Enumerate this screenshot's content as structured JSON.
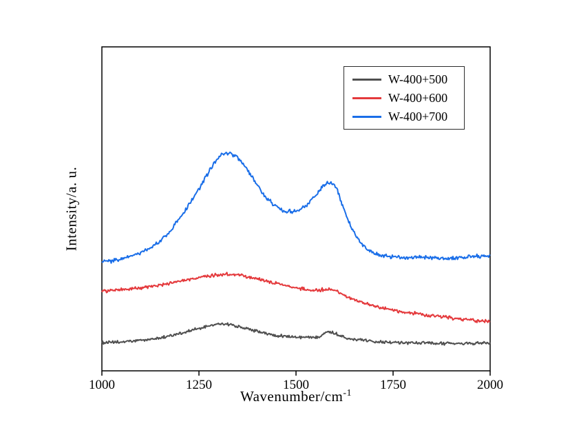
{
  "figure": {
    "background": "#ffffff",
    "frame_color": "#000000"
  },
  "chart_data": {
    "type": "line",
    "title": "",
    "xlabel": "Wavenumber/cm⁻¹",
    "xlabel_base": "Wavenumber/cm",
    "xlabel_sup": "-1",
    "ylabel": "Intensity/a. u.",
    "xlim": [
      1000,
      2000
    ],
    "ylim": [
      0,
      1
    ],
    "xticks": [
      1000,
      1250,
      1500,
      1750,
      2000
    ],
    "yticks": [],
    "grid": false,
    "legend_position": "top-right-inside",
    "series": [
      {
        "name": "W-400+500",
        "color": "#4f4f4f",
        "noise": 0.0035,
        "points": [
          [
            1000,
            0.087
          ],
          [
            1050,
            0.089
          ],
          [
            1100,
            0.094
          ],
          [
            1150,
            0.102
          ],
          [
            1200,
            0.115
          ],
          [
            1250,
            0.13
          ],
          [
            1290,
            0.142
          ],
          [
            1310,
            0.145
          ],
          [
            1340,
            0.14
          ],
          [
            1380,
            0.128
          ],
          [
            1430,
            0.113
          ],
          [
            1480,
            0.106
          ],
          [
            1530,
            0.103
          ],
          [
            1560,
            0.107
          ],
          [
            1580,
            0.121
          ],
          [
            1600,
            0.115
          ],
          [
            1630,
            0.102
          ],
          [
            1670,
            0.095
          ],
          [
            1720,
            0.09
          ],
          [
            1780,
            0.087
          ],
          [
            1850,
            0.085
          ],
          [
            1920,
            0.084
          ],
          [
            2000,
            0.086
          ]
        ]
      },
      {
        "name": "W-400+600",
        "color": "#e4393c",
        "noise": 0.004,
        "points": [
          [
            1000,
            0.247
          ],
          [
            1050,
            0.25
          ],
          [
            1100,
            0.256
          ],
          [
            1150,
            0.264
          ],
          [
            1200,
            0.275
          ],
          [
            1250,
            0.288
          ],
          [
            1300,
            0.296
          ],
          [
            1330,
            0.298
          ],
          [
            1370,
            0.292
          ],
          [
            1420,
            0.278
          ],
          [
            1470,
            0.264
          ],
          [
            1520,
            0.252
          ],
          [
            1550,
            0.248
          ],
          [
            1575,
            0.252
          ],
          [
            1595,
            0.25
          ],
          [
            1620,
            0.236
          ],
          [
            1650,
            0.218
          ],
          [
            1700,
            0.2
          ],
          [
            1750,
            0.188
          ],
          [
            1800,
            0.178
          ],
          [
            1850,
            0.17
          ],
          [
            1900,
            0.163
          ],
          [
            1950,
            0.157
          ],
          [
            2000,
            0.152
          ]
        ]
      },
      {
        "name": "W-400+700",
        "color": "#1a6ee8",
        "noise": 0.0045,
        "points": [
          [
            1000,
            0.335
          ],
          [
            1050,
            0.345
          ],
          [
            1100,
            0.365
          ],
          [
            1150,
            0.4
          ],
          [
            1200,
            0.47
          ],
          [
            1250,
            0.56
          ],
          [
            1290,
            0.64
          ],
          [
            1320,
            0.672
          ],
          [
            1350,
            0.655
          ],
          [
            1380,
            0.61
          ],
          [
            1420,
            0.54
          ],
          [
            1460,
            0.5
          ],
          [
            1490,
            0.492
          ],
          [
            1520,
            0.505
          ],
          [
            1550,
            0.54
          ],
          [
            1575,
            0.575
          ],
          [
            1590,
            0.581
          ],
          [
            1605,
            0.56
          ],
          [
            1620,
            0.51
          ],
          [
            1640,
            0.45
          ],
          [
            1660,
            0.405
          ],
          [
            1680,
            0.378
          ],
          [
            1700,
            0.362
          ],
          [
            1750,
            0.352
          ],
          [
            1800,
            0.35
          ],
          [
            1850,
            0.35
          ],
          [
            1900,
            0.348
          ],
          [
            1950,
            0.352
          ],
          [
            2000,
            0.356
          ]
        ]
      }
    ],
    "legend_entries": [
      "W-400+500",
      "W-400+600",
      "W-400+700"
    ]
  },
  "layout_note": ""
}
